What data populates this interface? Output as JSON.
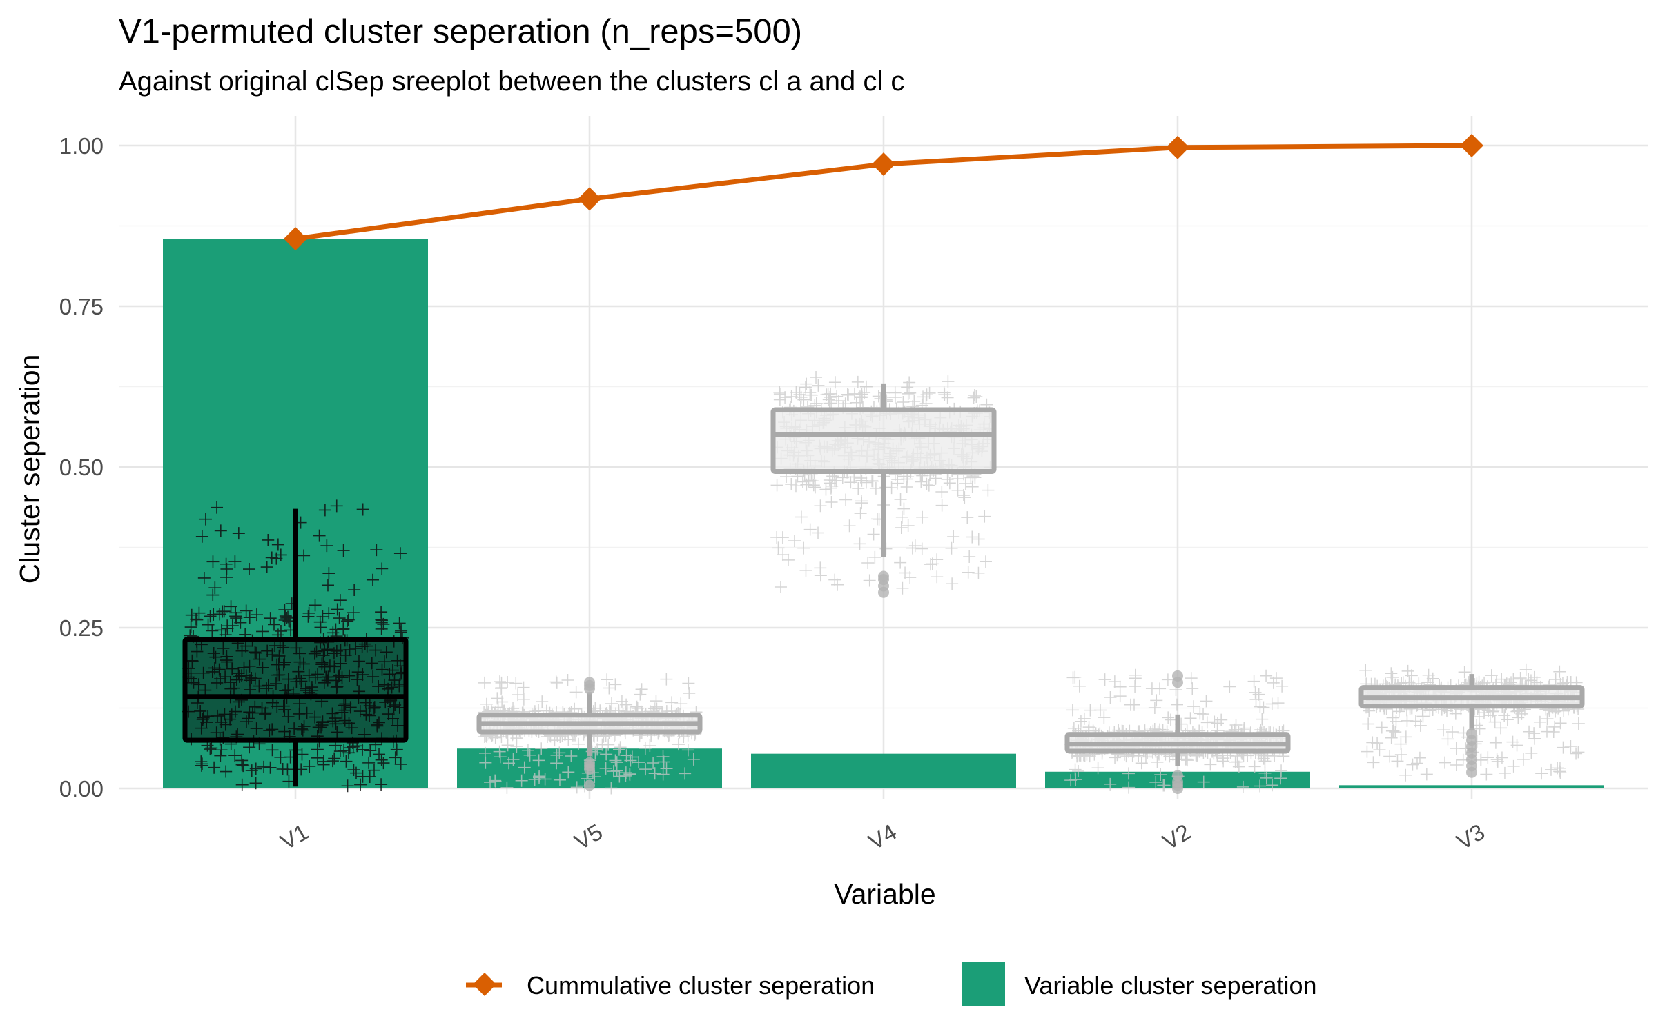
{
  "chart_data": {
    "type": "bar",
    "title": "V1-permuted cluster seperation (n_reps=500)",
    "subtitle": "Against original clSep sreeplot between the clusters cl a and cl c",
    "xlabel": "Variable",
    "ylabel": "Cluster seperation",
    "ylim": [
      -0.01,
      1.05
    ],
    "yticks": [
      0.0,
      0.25,
      0.5,
      0.75,
      1.0
    ],
    "ytick_labels": [
      "0.00",
      "0.25",
      "0.50",
      "0.75",
      "1.00"
    ],
    "categories": [
      "V1",
      "V5",
      "V4",
      "V2",
      "V3"
    ],
    "grid": true,
    "legend_position": "bottom",
    "series": [
      {
        "name": "Variable cluster seperation",
        "type": "bar",
        "color": "#1b9e77",
        "values": [
          0.855,
          0.062,
          0.054,
          0.026,
          0.005
        ]
      },
      {
        "name": "Cummulative cluster seperation",
        "type": "line",
        "marker": "diamond",
        "color": "#d95f02",
        "values": [
          0.855,
          0.917,
          0.971,
          0.997,
          1.0
        ]
      }
    ],
    "permutation_boxplots": [
      {
        "category": "V1",
        "q1": 0.075,
        "median": 0.143,
        "q3": 0.232,
        "whisker_low": 0.003,
        "whisker_high": 0.435,
        "outliers": [],
        "highlight": true,
        "jitter_min": 0.0,
        "jitter_max": 0.44
      },
      {
        "category": "V5",
        "q1": 0.088,
        "median": 0.101,
        "q3": 0.114,
        "whisker_low": 0.05,
        "whisker_high": 0.15,
        "outliers": [
          0.005,
          0.03,
          0.035,
          0.04,
          0.155,
          0.16,
          0.165
        ],
        "highlight": false,
        "jitter_min": 0.0,
        "jitter_max": 0.17
      },
      {
        "category": "V4",
        "q1": 0.493,
        "median": 0.551,
        "q3": 0.589,
        "whisker_low": 0.36,
        "whisker_high": 0.63,
        "outliers": [
          0.305,
          0.315,
          0.325,
          0.33
        ],
        "highlight": false,
        "jitter_min": 0.31,
        "jitter_max": 0.64
      },
      {
        "category": "V2",
        "q1": 0.058,
        "median": 0.069,
        "q3": 0.084,
        "whisker_low": 0.035,
        "whisker_high": 0.115,
        "outliers": [
          0.0,
          0.005,
          0.01,
          0.02,
          0.165,
          0.175
        ],
        "highlight": false,
        "jitter_min": 0.0,
        "jitter_max": 0.18
      },
      {
        "category": "V3",
        "q1": 0.128,
        "median": 0.141,
        "q3": 0.157,
        "whisker_low": 0.09,
        "whisker_high": 0.178,
        "outliers": [
          0.025,
          0.035,
          0.045,
          0.055,
          0.065,
          0.075,
          0.085
        ],
        "highlight": false,
        "jitter_min": 0.02,
        "jitter_max": 0.185
      }
    ]
  }
}
